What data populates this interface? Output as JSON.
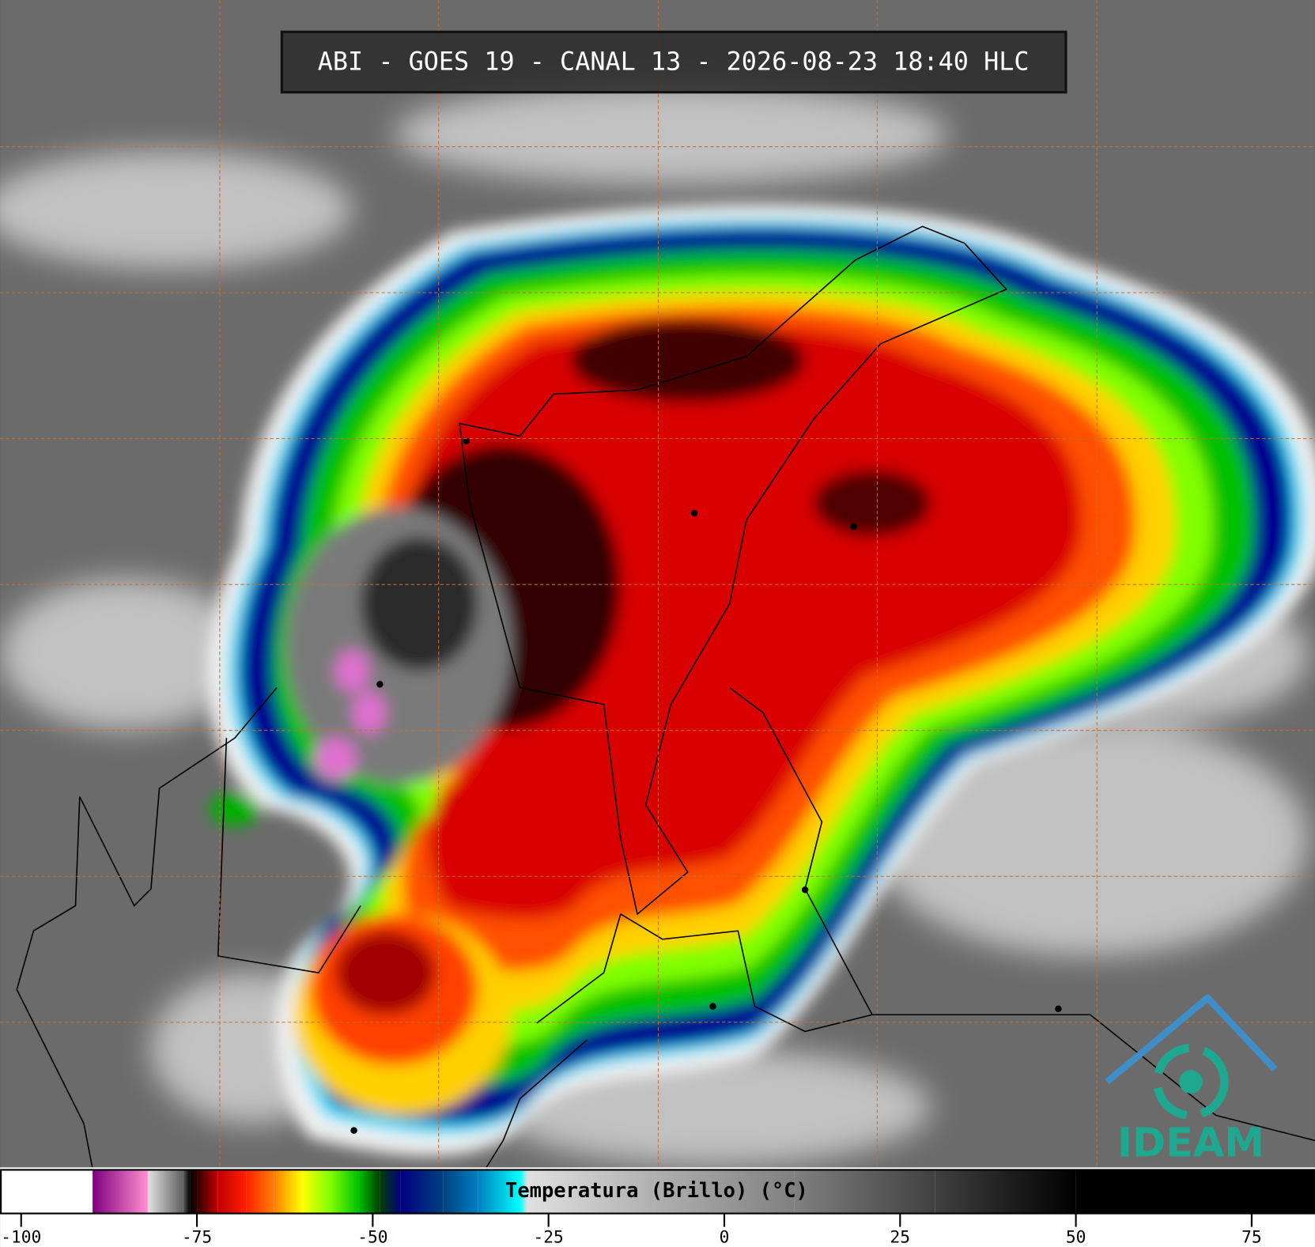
{
  "title": "ABI - GOES 19 - CANAL 13 - 2026-08-23 18:40 HLC",
  "colorbar": {
    "label": "Temperatura (Brillo) (°C)",
    "xlim": [
      -103,
      84
    ],
    "xticks": [
      -100,
      -75,
      -50,
      -25,
      0,
      25,
      50,
      75
    ],
    "stops": [
      {
        "value": -103,
        "color": "#ffffff"
      },
      {
        "value": -89.9,
        "color": "#ffffff"
      },
      {
        "value": -89.8,
        "color": "#800080"
      },
      {
        "value": -82,
        "color": "#ff90d0"
      },
      {
        "value": -81.9,
        "color": "#e0e0e0"
      },
      {
        "value": -77,
        "color": "#606060"
      },
      {
        "value": -76,
        "color": "#000000"
      },
      {
        "value": -75,
        "color": "#300000"
      },
      {
        "value": -72,
        "color": "#c00000"
      },
      {
        "value": -68,
        "color": "#ff2000"
      },
      {
        "value": -64,
        "color": "#ff8000"
      },
      {
        "value": -60,
        "color": "#ffff00"
      },
      {
        "value": -56,
        "color": "#80ff00"
      },
      {
        "value": -52,
        "color": "#00c000"
      },
      {
        "value": -49,
        "color": "#004000"
      },
      {
        "value": -46,
        "color": "#000080"
      },
      {
        "value": -40,
        "color": "#004080"
      },
      {
        "value": -35,
        "color": "#0080c0"
      },
      {
        "value": -29,
        "color": "#00ffff"
      },
      {
        "value": -28,
        "color": "#e0e0e0"
      },
      {
        "value": -10,
        "color": "#b0b0b0"
      },
      {
        "value": 10,
        "color": "#808080"
      },
      {
        "value": 30,
        "color": "#404040"
      },
      {
        "value": 50,
        "color": "#000000"
      },
      {
        "value": 84,
        "color": "#000000"
      }
    ]
  },
  "logo": {
    "text": "IDEAM"
  }
}
